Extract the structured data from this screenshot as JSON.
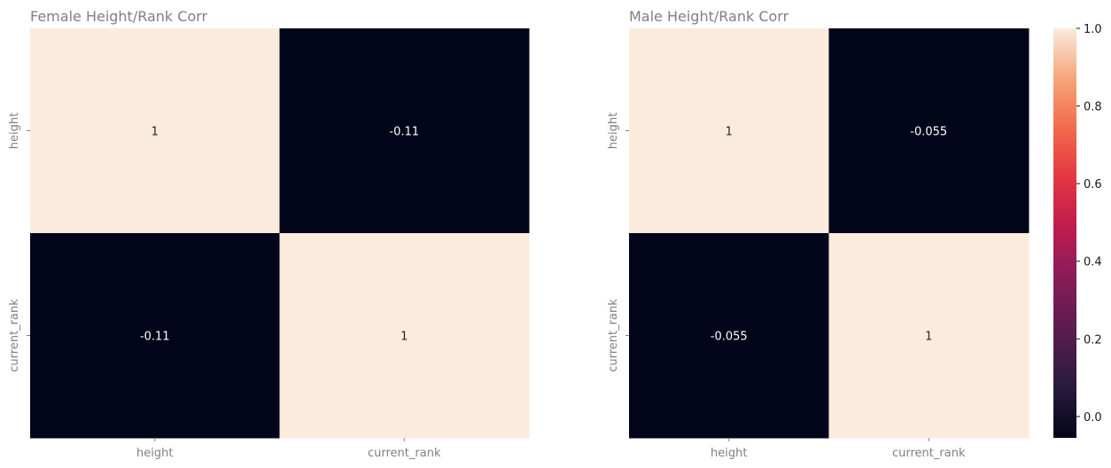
{
  "chart_data": [
    {
      "type": "heatmap",
      "title": "Female Height/Rank Corr",
      "rows": [
        "height",
        "current_rank"
      ],
      "columns": [
        "height",
        "current_rank"
      ],
      "values": [
        [
          1,
          -0.11
        ],
        [
          -0.11,
          1
        ]
      ],
      "annotations": [
        [
          "1",
          "-0.11"
        ],
        [
          "-0.11",
          "1"
        ]
      ]
    },
    {
      "type": "heatmap",
      "title": "Male Height/Rank Corr",
      "rows": [
        "height",
        "current_rank"
      ],
      "columns": [
        "height",
        "current_rank"
      ],
      "values": [
        [
          1,
          -0.055
        ],
        [
          -0.055,
          1
        ]
      ],
      "annotations": [
        [
          "1",
          "-0.055"
        ],
        [
          "-0.055",
          "1"
        ]
      ]
    }
  ],
  "colorbar": {
    "colormap": "rocket",
    "range": [
      -0.055,
      1.0
    ],
    "ticks": [
      0.0,
      0.2,
      0.4,
      0.6,
      0.8,
      1.0
    ],
    "tick_labels": [
      "0.0",
      "0.2",
      "0.4",
      "0.6",
      "0.8",
      "1.0"
    ]
  },
  "colors": {
    "low": "#03051a",
    "high": "#faebdd",
    "annot_dark_bg": "#ffffff",
    "annot_light_bg": "#262626"
  }
}
